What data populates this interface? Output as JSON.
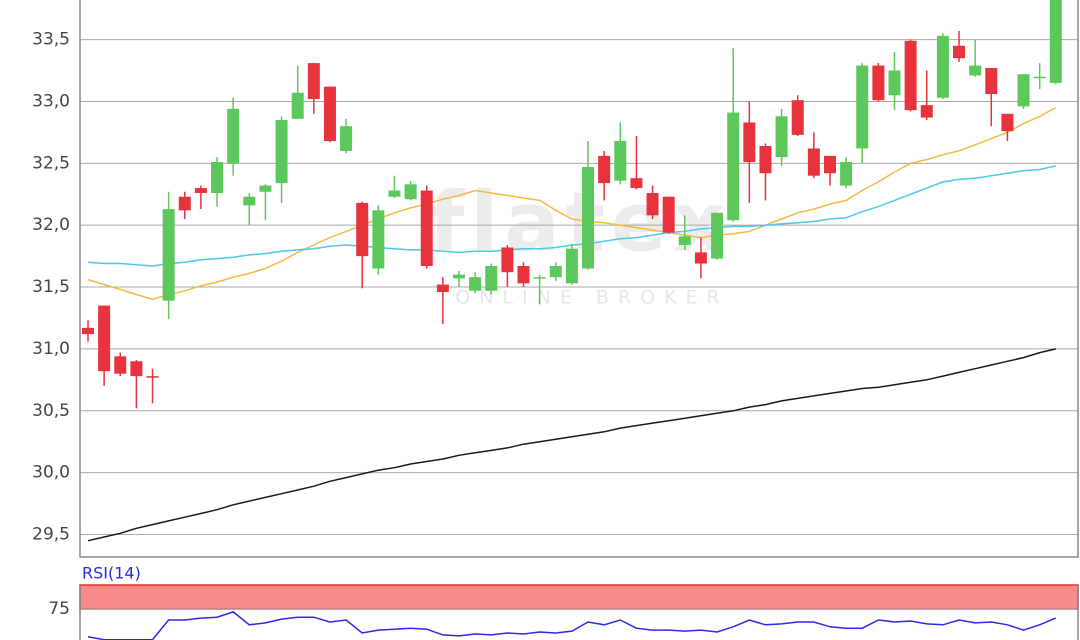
{
  "chart_data": [
    {
      "type": "candlestick",
      "watermark": {
        "logo": "flatex",
        "tagline": "ONLINE BROKER"
      },
      "open": [
        31.17,
        31.35,
        30.94,
        30.9,
        30.78,
        31.39,
        32.23,
        32.3,
        32.26,
        32.5,
        32.16,
        32.27,
        32.34,
        32.86,
        33.31,
        33.12,
        32.6,
        32.18,
        31.65,
        32.23,
        32.21,
        32.28,
        31.52,
        31.57,
        31.47,
        31.47,
        31.82,
        31.67,
        31.57,
        31.58,
        31.53,
        31.65,
        32.56,
        32.36,
        32.38,
        32.26,
        32.23,
        31.84,
        31.78,
        31.73,
        32.04,
        32.83,
        32.64,
        32.55,
        33.01,
        32.62,
        32.56,
        32.32,
        32.62,
        33.29,
        33.05,
        33.49,
        32.97,
        33.03,
        33.45,
        33.21,
        33.27,
        32.9,
        32.96,
        33.19,
        33.15
      ],
      "high": [
        31.23,
        31.35,
        30.97,
        30.91,
        30.84,
        32.27,
        32.27,
        32.32,
        32.55,
        33.03,
        32.26,
        32.33,
        32.88,
        33.29,
        33.31,
        33.12,
        32.86,
        32.19,
        32.16,
        32.4,
        32.36,
        32.32,
        31.58,
        31.63,
        31.62,
        31.69,
        31.84,
        31.7,
        31.6,
        31.7,
        31.85,
        32.68,
        32.6,
        32.83,
        32.72,
        32.32,
        32.23,
        32.08,
        31.9,
        32.1,
        33.43,
        33.0,
        32.66,
        32.94,
        33.05,
        32.75,
        32.56,
        32.55,
        33.31,
        33.31,
        33.4,
        33.5,
        33.25,
        33.55,
        33.57,
        33.5,
        33.27,
        32.9,
        33.22,
        33.31,
        33.85
      ],
      "low": [
        31.06,
        30.7,
        30.78,
        30.52,
        30.56,
        31.24,
        32.05,
        32.13,
        32.15,
        32.4,
        32.0,
        32.04,
        32.18,
        32.86,
        32.9,
        32.67,
        32.58,
        31.49,
        31.6,
        32.22,
        32.2,
        31.65,
        31.2,
        31.5,
        31.45,
        31.44,
        31.5,
        31.5,
        31.36,
        31.55,
        31.52,
        31.64,
        32.2,
        32.33,
        32.29,
        32.05,
        31.93,
        31.8,
        31.57,
        31.72,
        32.03,
        32.18,
        32.2,
        32.48,
        32.72,
        32.38,
        32.32,
        32.3,
        32.5,
        33.0,
        32.93,
        32.92,
        32.85,
        33.02,
        33.32,
        33.2,
        32.8,
        32.68,
        32.94,
        33.1,
        33.14
      ],
      "close": [
        31.12,
        30.82,
        30.8,
        30.78,
        30.77,
        32.13,
        32.12,
        32.26,
        32.51,
        32.94,
        32.23,
        32.32,
        32.85,
        33.07,
        33.02,
        32.68,
        32.8,
        31.75,
        32.12,
        32.28,
        32.33,
        31.67,
        31.46,
        31.6,
        31.58,
        31.67,
        31.62,
        31.53,
        31.58,
        31.67,
        31.81,
        32.47,
        32.34,
        32.68,
        32.3,
        32.08,
        31.94,
        31.91,
        31.69,
        32.1,
        32.91,
        32.51,
        32.42,
        32.88,
        32.73,
        32.4,
        32.42,
        32.51,
        33.29,
        33.01,
        33.25,
        32.93,
        32.87,
        33.53,
        33.35,
        33.29,
        33.06,
        32.76,
        33.22,
        33.2,
        33.85
      ],
      "up_color": "#5cc85c",
      "down_color": "#e8323c",
      "series": [
        {
          "color": "#f5b942",
          "values": [
            31.56,
            31.52,
            31.48,
            31.44,
            31.4,
            31.44,
            31.47,
            31.51,
            31.54,
            31.58,
            31.61,
            31.65,
            31.71,
            31.78,
            31.84,
            31.9,
            31.95,
            32.0,
            32.05,
            32.1,
            32.14,
            32.17,
            32.21,
            32.24,
            32.28,
            32.26,
            32.24,
            32.22,
            32.2,
            32.12,
            32.05,
            32.03,
            32.02,
            32.0,
            31.98,
            31.96,
            31.94,
            31.92,
            31.9,
            31.92,
            31.93,
            31.95,
            32.0,
            32.05,
            32.1,
            32.13,
            32.17,
            32.2,
            32.28,
            32.35,
            32.43,
            32.5,
            32.53,
            32.57,
            32.6,
            32.65,
            32.7,
            32.75,
            32.82,
            32.88,
            32.95
          ]
        },
        {
          "color": "#4cc8ec",
          "values": [
            31.7,
            31.69,
            31.69,
            31.68,
            31.67,
            31.69,
            31.7,
            31.72,
            31.73,
            31.74,
            31.76,
            31.77,
            31.79,
            31.8,
            31.81,
            31.83,
            31.84,
            31.83,
            31.82,
            31.81,
            31.8,
            31.8,
            31.79,
            31.78,
            31.79,
            31.79,
            31.8,
            31.81,
            31.81,
            31.82,
            31.84,
            31.85,
            31.87,
            31.89,
            31.9,
            31.92,
            31.94,
            31.95,
            31.97,
            31.98,
            31.99,
            31.99,
            32.0,
            32.01,
            32.02,
            32.03,
            32.05,
            32.06,
            32.11,
            32.15,
            32.2,
            32.25,
            32.3,
            32.35,
            32.37,
            32.38,
            32.4,
            32.42,
            32.44,
            32.45,
            32.48
          ]
        },
        {
          "color": "#1a1a1a",
          "values": [
            29.45,
            29.48,
            29.51,
            29.55,
            29.58,
            29.61,
            29.64,
            29.67,
            29.7,
            29.74,
            29.77,
            29.8,
            29.83,
            29.86,
            29.89,
            29.93,
            29.96,
            29.99,
            30.02,
            30.04,
            30.07,
            30.09,
            30.11,
            30.14,
            30.16,
            30.18,
            30.2,
            30.23,
            30.25,
            30.27,
            30.29,
            30.31,
            30.33,
            30.36,
            30.38,
            30.4,
            30.42,
            30.44,
            30.46,
            30.48,
            30.5,
            30.53,
            30.55,
            30.58,
            30.6,
            30.62,
            30.64,
            30.66,
            30.68,
            30.69,
            30.71,
            30.73,
            30.75,
            30.78,
            30.81,
            30.84,
            30.87,
            30.9,
            30.93,
            30.97,
            31.0
          ]
        }
      ],
      "ylim": [
        29.31,
        33.82
      ],
      "yticks": [
        {
          "value": 29.5,
          "label": "29,5"
        },
        {
          "value": 30,
          "label": "30,0"
        },
        {
          "value": 30.5,
          "label": "30,5"
        },
        {
          "value": 31,
          "label": "31,0"
        },
        {
          "value": 31.5,
          "label": "31,5"
        },
        {
          "value": 32,
          "label": "32,0"
        },
        {
          "value": 32.5,
          "label": "32,5"
        },
        {
          "value": 33,
          "label": "33,0"
        },
        {
          "value": 33.5,
          "label": "33,5"
        }
      ],
      "grid": true
    },
    {
      "type": "line",
      "title": "RSI(14)",
      "series": [
        {
          "color": "#2a2ae8",
          "values": [
            69.2,
            68.6,
            68.6,
            68.6,
            68.6,
            72.7,
            72.7,
            73.1,
            73.3,
            74.4,
            71.7,
            72.1,
            72.9,
            73.3,
            73.3,
            72.3,
            72.7,
            70.0,
            70.6,
            70.8,
            71.0,
            70.8,
            69.6,
            69.4,
            69.8,
            69.6,
            70.0,
            69.8,
            70.2,
            70.0,
            70.4,
            72.3,
            71.7,
            72.7,
            71.0,
            70.6,
            70.6,
            70.4,
            70.6,
            70.2,
            71.3,
            72.7,
            71.7,
            71.9,
            72.3,
            72.3,
            71.3,
            71.0,
            71.0,
            72.7,
            72.3,
            72.5,
            71.9,
            71.7,
            72.7,
            72.1,
            72.3,
            71.7,
            70.6,
            71.7,
            73.1
          ]
        }
      ],
      "band": {
        "range": [
          75,
          80
        ],
        "color": "#f88a8a"
      },
      "ylim": [
        68.5,
        80
      ],
      "yticks": [
        75
      ],
      "grid": true
    }
  ]
}
